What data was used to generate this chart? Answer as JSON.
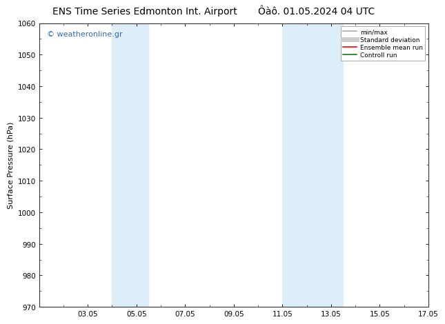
{
  "title_left": "ENS Time Series Edmonton Int. Airport",
  "title_right": "Ôàô. 01.05.2024 04 UTC",
  "ylabel": "Surface Pressure (hPa)",
  "ylim": [
    970,
    1060
  ],
  "yticks": [
    970,
    980,
    990,
    1000,
    1010,
    1020,
    1030,
    1040,
    1050,
    1060
  ],
  "xlim_start": 1.0,
  "xlim_end": 17.0,
  "xtick_labels": [
    "03.05",
    "05.05",
    "07.05",
    "09.05",
    "11.05",
    "13.05",
    "15.05",
    "17.05"
  ],
  "xtick_positions": [
    3,
    5,
    7,
    9,
    11,
    13,
    15,
    17
  ],
  "shaded_regions": [
    {
      "xmin": 4.0,
      "xmax": 5.5,
      "color": "#ddeef8"
    },
    {
      "xmin": 11.0,
      "xmax": 13.5,
      "color": "#ddeef8"
    }
  ],
  "watermark_text": "© weatheronline.gr",
  "watermark_color": "#3366bb",
  "legend_entries": [
    {
      "label": "min/max",
      "color": "#aaaaaa",
      "lw": 1.2,
      "style": "solid"
    },
    {
      "label": "Standard deviation",
      "color": "#cccccc",
      "lw": 5,
      "style": "solid"
    },
    {
      "label": "Ensemble mean run",
      "color": "#ff0000",
      "lw": 1.2,
      "style": "solid"
    },
    {
      "label": "Controll run",
      "color": "#008800",
      "lw": 1.2,
      "style": "solid"
    }
  ],
  "bg_color": "#ffffff",
  "plot_bg_color": "#ffffff",
  "title_fontsize": 10,
  "watermark_fontsize": 8,
  "ylabel_fontsize": 8,
  "tick_fontsize": 7.5
}
